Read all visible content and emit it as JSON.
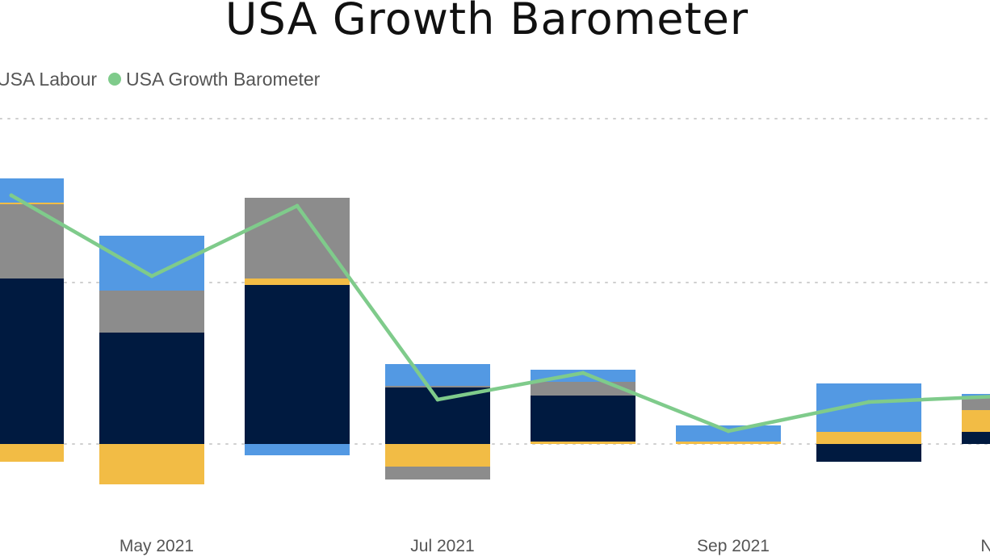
{
  "chart_data": {
    "type": "bar",
    "title": "USA Growth Barometer",
    "legend": [
      {
        "name": "USA Labour",
        "color": "#001a40"
      },
      {
        "name": "USA Growth Barometer",
        "color": "#7fcb8b"
      }
    ],
    "legend_placement": "top-left",
    "grid": true,
    "ylim": [
      -1.5,
      3.7
    ],
    "x_ticks": [
      "May 2021",
      "Jul 2021",
      "Sep 2021",
      "N"
    ],
    "series_colors": {
      "navy": "#001a40",
      "yellow": "#f2bc45",
      "gray": "#8c8c8c",
      "blue": "#5399e3",
      "line": "#7fcb8b"
    },
    "bars": [
      {
        "segments": [
          {
            "color": "navy",
            "value": 2.05
          },
          {
            "color": "gray",
            "value": 0.92
          },
          {
            "color": "yellow",
            "value": 0.02
          },
          {
            "color": "blue",
            "value": 0.3
          },
          {
            "color": "yellow",
            "value": -0.22
          }
        ]
      },
      {
        "segments": [
          {
            "color": "navy",
            "value": 1.38
          },
          {
            "color": "gray",
            "value": 0.52
          },
          {
            "color": "blue",
            "value": 0.68
          },
          {
            "color": "yellow",
            "value": -0.5
          }
        ]
      },
      {
        "segments": [
          {
            "color": "navy",
            "value": 1.97
          },
          {
            "color": "yellow",
            "value": 0.08
          },
          {
            "color": "gray",
            "value": 1.0
          },
          {
            "color": "blue",
            "value": -0.14
          }
        ]
      },
      {
        "segments": [
          {
            "color": "navy",
            "value": 0.7
          },
          {
            "color": "gray",
            "value": 0.02
          },
          {
            "color": "blue",
            "value": 0.27
          },
          {
            "color": "yellow",
            "value": -0.28
          },
          {
            "color": "gray",
            "value": -0.16
          }
        ]
      },
      {
        "segments": [
          {
            "color": "yellow",
            "value": 0.03
          },
          {
            "color": "navy",
            "value": 0.57
          },
          {
            "color": "gray",
            "value": 0.17
          },
          {
            "color": "blue",
            "value": 0.15
          }
        ]
      },
      {
        "segments": [
          {
            "color": "yellow",
            "value": 0.03
          },
          {
            "color": "blue",
            "value": 0.2
          }
        ]
      },
      {
        "segments": [
          {
            "color": "yellow",
            "value": 0.15
          },
          {
            "color": "blue",
            "value": 0.6
          },
          {
            "color": "navy",
            "value": -0.22
          }
        ]
      },
      {
        "segments": [
          {
            "color": "navy",
            "value": 0.15
          },
          {
            "color": "yellow",
            "value": 0.27
          },
          {
            "color": "gray",
            "value": 0.15
          },
          {
            "color": "blue",
            "value": 0.05
          }
        ]
      }
    ],
    "line_values": [
      3.08,
      2.08,
      2.95,
      0.55,
      0.88,
      0.16,
      0.52,
      0.6
    ]
  }
}
